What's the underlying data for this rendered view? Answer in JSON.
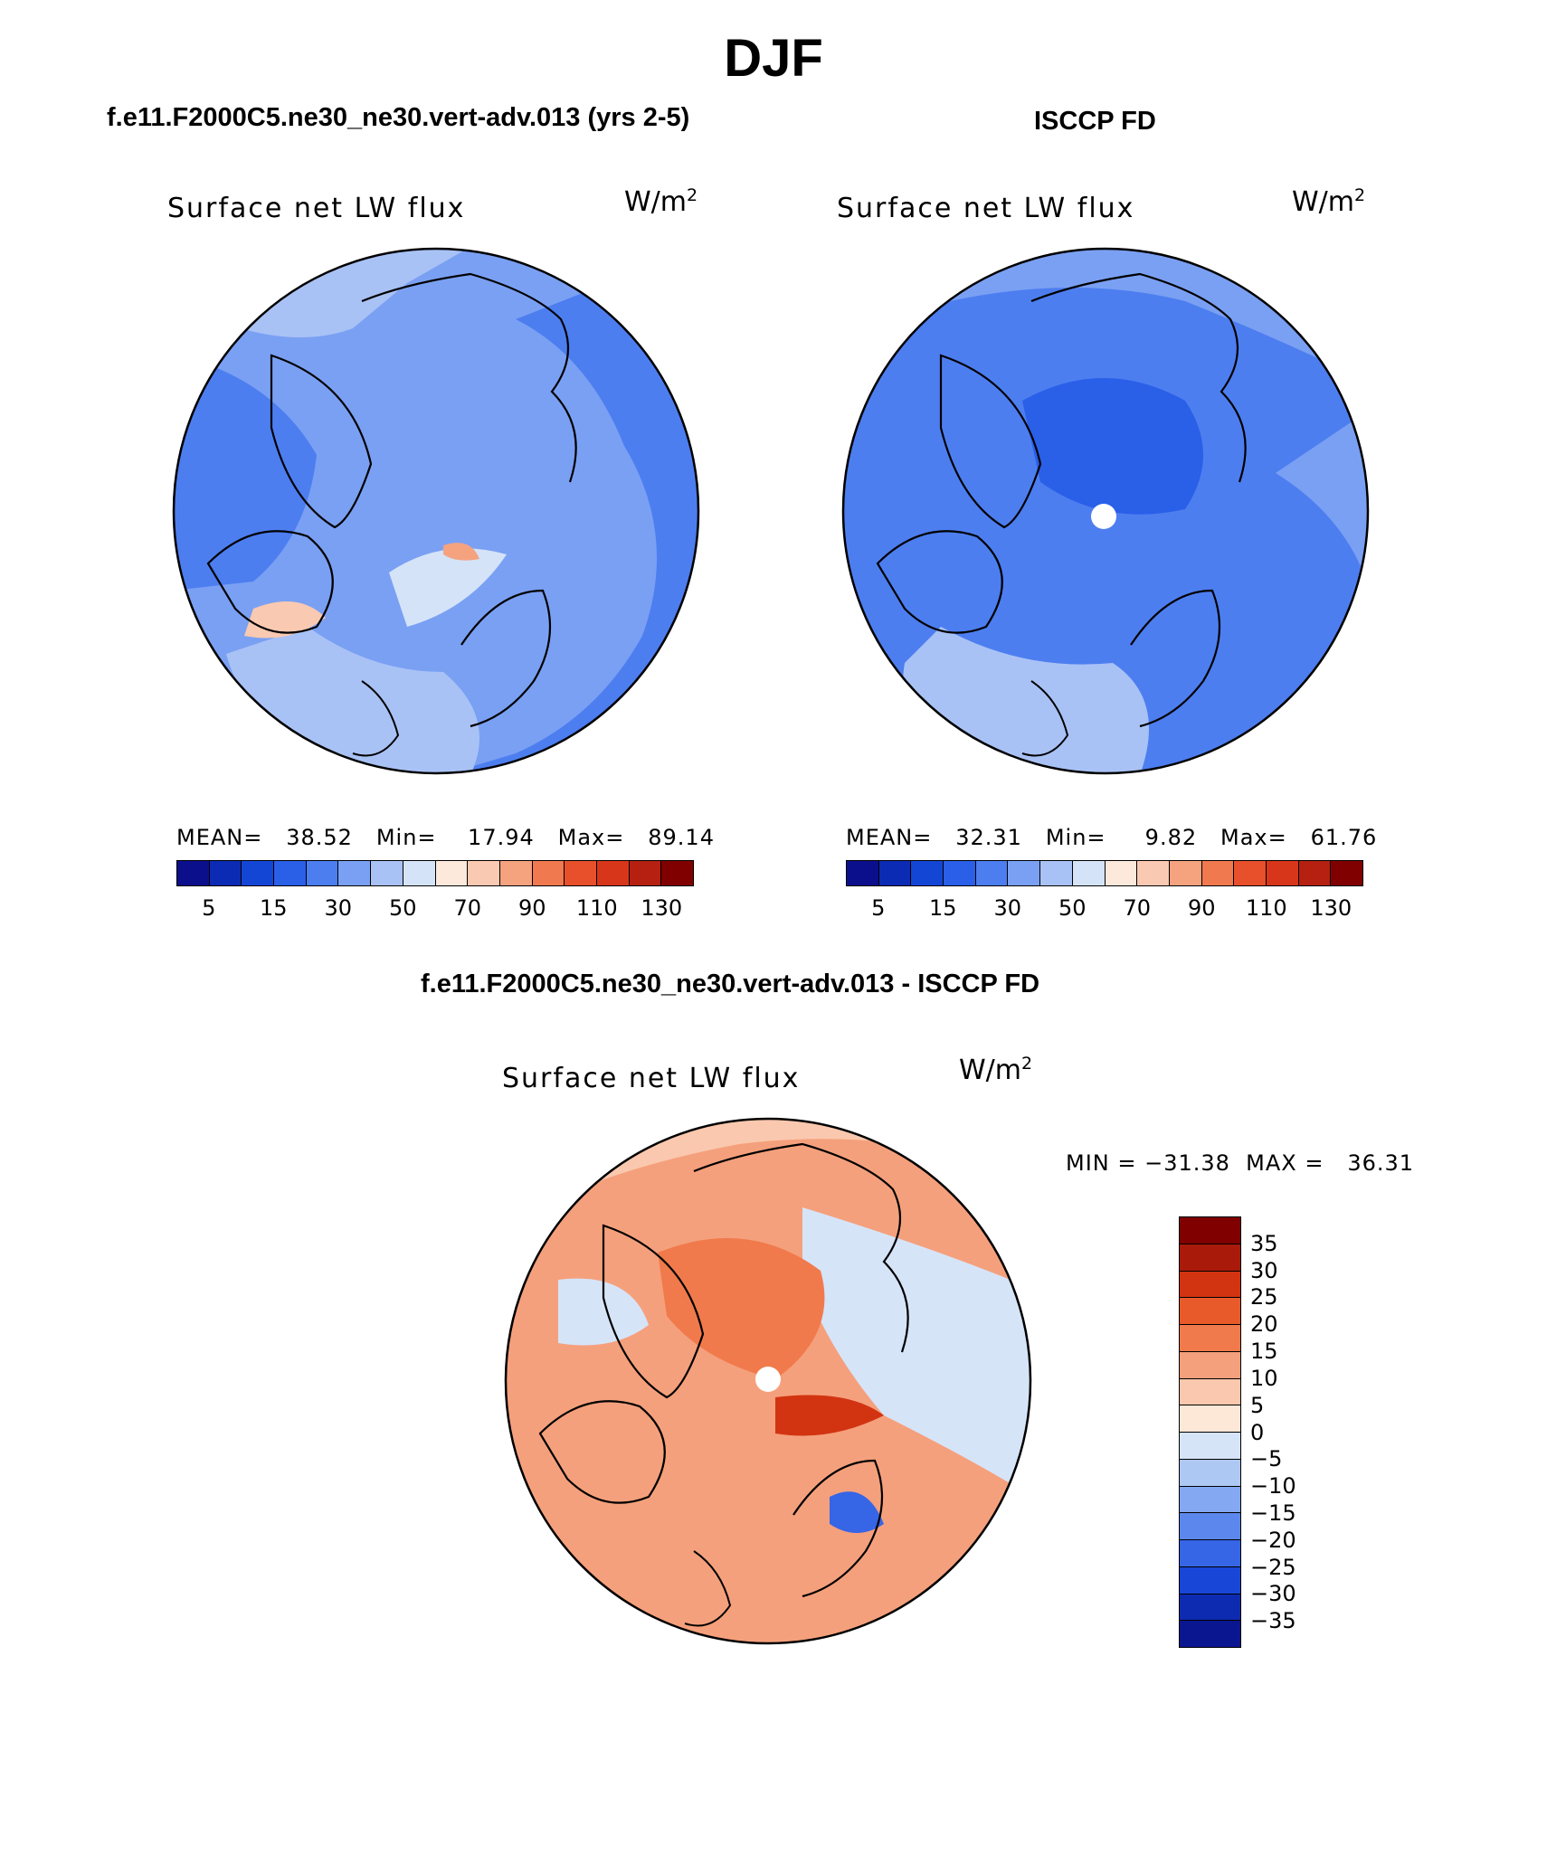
{
  "figure": {
    "season": "DJF",
    "left_title": "f.e11.F2000C5.ne30_ne30.vert-adv.013 (yrs 2-5)",
    "right_title": "ISCCP FD",
    "diff_title": "f.e11.F2000C5.ne30_ne30.vert-adv.013 - ISCCP FD"
  },
  "panels": {
    "model": {
      "label": "Surface net LW flux",
      "unit": "W/m",
      "unit_exp": "2",
      "stats": "MEAN=   38.52   Min=    17.94   Max=   89.14"
    },
    "obs": {
      "label": "Surface net LW flux",
      "unit": "W/m",
      "unit_exp": "2",
      "stats": "MEAN=   32.31   Min=     9.82   Max=   61.76"
    },
    "diff": {
      "label": "Surface net LW flux",
      "unit": "W/m",
      "unit_exp": "2",
      "minmax": "MIN = −31.38  MAX =   36.31"
    }
  },
  "colorbar_main": {
    "colors": [
      "#0b0f8c",
      "#0c2bb5",
      "#1446d6",
      "#2a5fe8",
      "#4d7ef0",
      "#7aa0f3",
      "#a9c2f5",
      "#d4e3f8",
      "#fde9db",
      "#fac9b1",
      "#f5a27f",
      "#f0794f",
      "#e8502b",
      "#d8361a",
      "#b52010",
      "#800000"
    ],
    "ticks": [
      "5",
      "15",
      "30",
      "50",
      "70",
      "90",
      "110",
      "130"
    ]
  },
  "colorbar_diff": {
    "colors": [
      "#800000",
      "#aa1a0a",
      "#d23412",
      "#e85a2a",
      "#f07a4c",
      "#f5a07c",
      "#fac8ae",
      "#fde8d8",
      "#d6e4f8",
      "#aec8f4",
      "#84a8f2",
      "#5c88ee",
      "#3665e6",
      "#1846d6",
      "#0d2bb0",
      "#0a1690"
    ],
    "ticks": [
      "35",
      "30",
      "25",
      "20",
      "15",
      "10",
      "5",
      "0",
      "−5",
      "−10",
      "−15",
      "−20",
      "−25",
      "−30",
      "−35"
    ]
  }
}
